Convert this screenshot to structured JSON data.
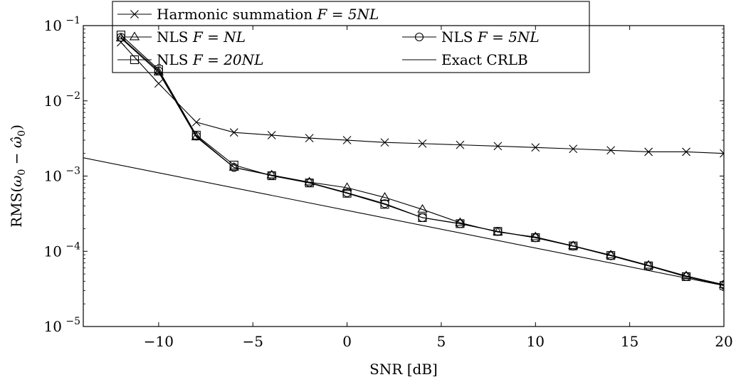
{
  "chart_data": {
    "type": "line",
    "title": "",
    "xlabel": "SNR [dB]",
    "ylabel": {
      "prefix": "RMS(",
      "w0": "ω",
      "sub0": "0",
      "minus": " − ",
      "w0hat": "ω̂",
      "sub1": "0",
      "suffix": ")"
    },
    "xlim": [
      -14,
      20
    ],
    "ylim": [
      1e-05,
      0.1
    ],
    "yscale": "log",
    "grid": false,
    "legend_position": "top-center",
    "x_ticks": [
      -10,
      -5,
      0,
      5,
      10,
      15,
      20
    ],
    "x_tick_labels": [
      "−10",
      "−5",
      "0",
      "5",
      "10",
      "15",
      "20"
    ],
    "y_ticks": [
      {
        "value": 0.1,
        "base": "10",
        "exp": "−1"
      },
      {
        "value": 0.01,
        "base": "10",
        "exp": "−2"
      },
      {
        "value": 0.001,
        "base": "10",
        "exp": "−3"
      },
      {
        "value": 0.0001,
        "base": "10",
        "exp": "−4"
      },
      {
        "value": 1e-05,
        "base": "10",
        "exp": "−5"
      }
    ],
    "x": [
      -12,
      -10,
      -8,
      -6,
      -4,
      -2,
      0,
      2,
      4,
      6,
      8,
      10,
      12,
      14,
      16,
      18,
      20
    ],
    "series": [
      {
        "name": "Harmonic summation F = 5NL",
        "legend": {
          "text": "Harmonic summation ",
          "math": "F = 5NL"
        },
        "marker": "x",
        "values": [
          0.06,
          0.017,
          0.0052,
          0.0038,
          0.0035,
          0.0032,
          0.003,
          0.0028,
          0.0027,
          0.0026,
          0.0025,
          0.0024,
          0.0023,
          0.0022,
          0.0021,
          0.0021,
          0.002
        ]
      },
      {
        "name": "NLS F = NL",
        "legend": {
          "text": "NLS ",
          "math": "F = NL"
        },
        "marker": "triangle",
        "values": [
          0.068,
          0.024,
          0.0033,
          0.0013,
          0.00103,
          0.00083,
          0.0007,
          0.00052,
          0.00036,
          0.00024,
          0.00018,
          0.000155,
          0.000118,
          8.9e-05,
          6.5e-05,
          4.7e-05,
          3.6e-05
        ]
      },
      {
        "name": "NLS F = 5NL",
        "legend": {
          "text": "NLS ",
          "math": "F = 5NL"
        },
        "marker": "circle",
        "values": [
          0.07,
          0.025,
          0.0034,
          0.0013,
          0.00102,
          0.00082,
          0.0006,
          0.00043,
          0.00028,
          0.000232,
          0.000183,
          0.000151,
          0.000117,
          8.7e-05,
          6.4e-05,
          4.6e-05,
          3.6e-05
        ]
      },
      {
        "name": "NLS F = 20NL",
        "legend": {
          "text": "NLS ",
          "math": "F = 20NL"
        },
        "marker": "square",
        "values": [
          0.075,
          0.026,
          0.0035,
          0.0014,
          0.00101,
          0.00081,
          0.00059,
          0.00042,
          0.00028,
          0.000233,
          0.000184,
          0.000152,
          0.000118,
          8.8e-05,
          6.4e-05,
          4.6e-05,
          3.5e-05
        ]
      },
      {
        "name": "Exact CRLB",
        "legend": {
          "text": "Exact CRLB",
          "math": ""
        },
        "marker": "none",
        "x": [
          -14,
          20
        ],
        "values": [
          0.00175,
          3.5e-05
        ]
      }
    ]
  }
}
